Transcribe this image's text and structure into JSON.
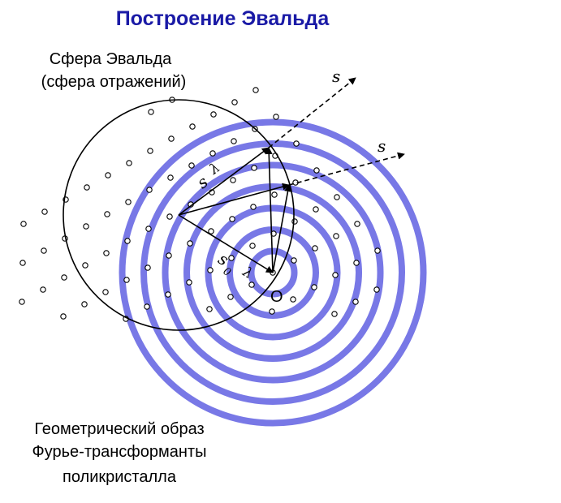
{
  "title": "Построение Эвальда",
  "ewald_label": {
    "line1": "Сфера Эвальда",
    "line2": "(сфера отражений)"
  },
  "powder_label": {
    "line1": "Геометрический образ",
    "line2": "Фурье-трансформанты",
    "line3": "поликристалла"
  },
  "symbols": {
    "s": "s",
    "s0": "s",
    "s0_sub": "0",
    "lambda_symbol": "λ",
    "origin": "O"
  },
  "colors": {
    "title": "#1a1aa6",
    "rings": "#7878e6",
    "lines": "#000000"
  },
  "ring_count": 7
}
